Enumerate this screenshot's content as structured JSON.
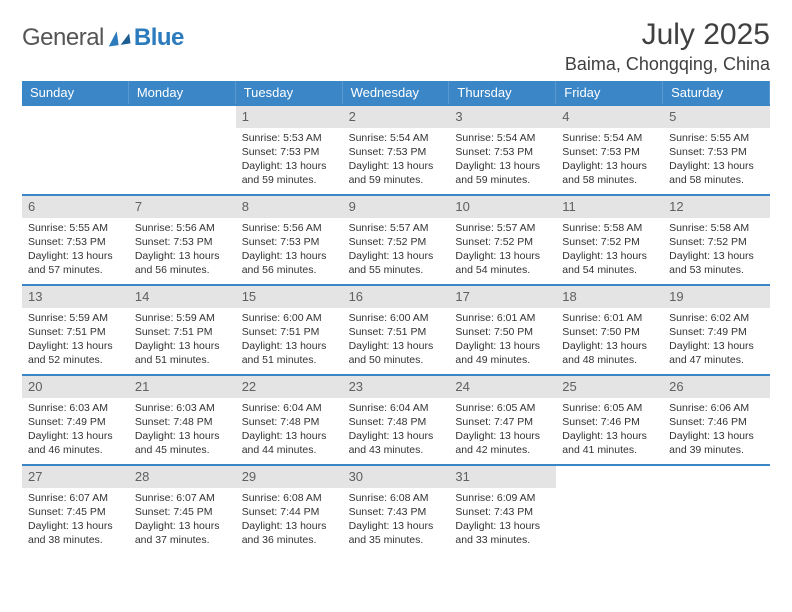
{
  "logo": {
    "word1": "General",
    "word2": "Blue"
  },
  "title": "July 2025",
  "location": "Baima, Chongqing, China",
  "colors": {
    "header_bg": "#3b86c6",
    "header_text": "#ffffff",
    "daynum_bg": "#e4e4e4",
    "daynum_text": "#606060",
    "body_text": "#333333",
    "accent": "#2b7bbd",
    "rule": "#3b86c6"
  },
  "day_names": [
    "Sunday",
    "Monday",
    "Tuesday",
    "Wednesday",
    "Thursday",
    "Friday",
    "Saturday"
  ],
  "weeks": [
    [
      {
        "day": null
      },
      {
        "day": null
      },
      {
        "day": 1,
        "sunrise": "5:53 AM",
        "sunset": "7:53 PM",
        "daylight": "13 hours and 59 minutes."
      },
      {
        "day": 2,
        "sunrise": "5:54 AM",
        "sunset": "7:53 PM",
        "daylight": "13 hours and 59 minutes."
      },
      {
        "day": 3,
        "sunrise": "5:54 AM",
        "sunset": "7:53 PM",
        "daylight": "13 hours and 59 minutes."
      },
      {
        "day": 4,
        "sunrise": "5:54 AM",
        "sunset": "7:53 PM",
        "daylight": "13 hours and 58 minutes."
      },
      {
        "day": 5,
        "sunrise": "5:55 AM",
        "sunset": "7:53 PM",
        "daylight": "13 hours and 58 minutes."
      }
    ],
    [
      {
        "day": 6,
        "sunrise": "5:55 AM",
        "sunset": "7:53 PM",
        "daylight": "13 hours and 57 minutes."
      },
      {
        "day": 7,
        "sunrise": "5:56 AM",
        "sunset": "7:53 PM",
        "daylight": "13 hours and 56 minutes."
      },
      {
        "day": 8,
        "sunrise": "5:56 AM",
        "sunset": "7:53 PM",
        "daylight": "13 hours and 56 minutes."
      },
      {
        "day": 9,
        "sunrise": "5:57 AM",
        "sunset": "7:52 PM",
        "daylight": "13 hours and 55 minutes."
      },
      {
        "day": 10,
        "sunrise": "5:57 AM",
        "sunset": "7:52 PM",
        "daylight": "13 hours and 54 minutes."
      },
      {
        "day": 11,
        "sunrise": "5:58 AM",
        "sunset": "7:52 PM",
        "daylight": "13 hours and 54 minutes."
      },
      {
        "day": 12,
        "sunrise": "5:58 AM",
        "sunset": "7:52 PM",
        "daylight": "13 hours and 53 minutes."
      }
    ],
    [
      {
        "day": 13,
        "sunrise": "5:59 AM",
        "sunset": "7:51 PM",
        "daylight": "13 hours and 52 minutes."
      },
      {
        "day": 14,
        "sunrise": "5:59 AM",
        "sunset": "7:51 PM",
        "daylight": "13 hours and 51 minutes."
      },
      {
        "day": 15,
        "sunrise": "6:00 AM",
        "sunset": "7:51 PM",
        "daylight": "13 hours and 51 minutes."
      },
      {
        "day": 16,
        "sunrise": "6:00 AM",
        "sunset": "7:51 PM",
        "daylight": "13 hours and 50 minutes."
      },
      {
        "day": 17,
        "sunrise": "6:01 AM",
        "sunset": "7:50 PM",
        "daylight": "13 hours and 49 minutes."
      },
      {
        "day": 18,
        "sunrise": "6:01 AM",
        "sunset": "7:50 PM",
        "daylight": "13 hours and 48 minutes."
      },
      {
        "day": 19,
        "sunrise": "6:02 AM",
        "sunset": "7:49 PM",
        "daylight": "13 hours and 47 minutes."
      }
    ],
    [
      {
        "day": 20,
        "sunrise": "6:03 AM",
        "sunset": "7:49 PM",
        "daylight": "13 hours and 46 minutes."
      },
      {
        "day": 21,
        "sunrise": "6:03 AM",
        "sunset": "7:48 PM",
        "daylight": "13 hours and 45 minutes."
      },
      {
        "day": 22,
        "sunrise": "6:04 AM",
        "sunset": "7:48 PM",
        "daylight": "13 hours and 44 minutes."
      },
      {
        "day": 23,
        "sunrise": "6:04 AM",
        "sunset": "7:48 PM",
        "daylight": "13 hours and 43 minutes."
      },
      {
        "day": 24,
        "sunrise": "6:05 AM",
        "sunset": "7:47 PM",
        "daylight": "13 hours and 42 minutes."
      },
      {
        "day": 25,
        "sunrise": "6:05 AM",
        "sunset": "7:46 PM",
        "daylight": "13 hours and 41 minutes."
      },
      {
        "day": 26,
        "sunrise": "6:06 AM",
        "sunset": "7:46 PM",
        "daylight": "13 hours and 39 minutes."
      }
    ],
    [
      {
        "day": 27,
        "sunrise": "6:07 AM",
        "sunset": "7:45 PM",
        "daylight": "13 hours and 38 minutes."
      },
      {
        "day": 28,
        "sunrise": "6:07 AM",
        "sunset": "7:45 PM",
        "daylight": "13 hours and 37 minutes."
      },
      {
        "day": 29,
        "sunrise": "6:08 AM",
        "sunset": "7:44 PM",
        "daylight": "13 hours and 36 minutes."
      },
      {
        "day": 30,
        "sunrise": "6:08 AM",
        "sunset": "7:43 PM",
        "daylight": "13 hours and 35 minutes."
      },
      {
        "day": 31,
        "sunrise": "6:09 AM",
        "sunset": "7:43 PM",
        "daylight": "13 hours and 33 minutes."
      },
      {
        "day": null
      },
      {
        "day": null
      }
    ]
  ],
  "labels": {
    "sunrise": "Sunrise:",
    "sunset": "Sunset:",
    "daylight": "Daylight:"
  }
}
